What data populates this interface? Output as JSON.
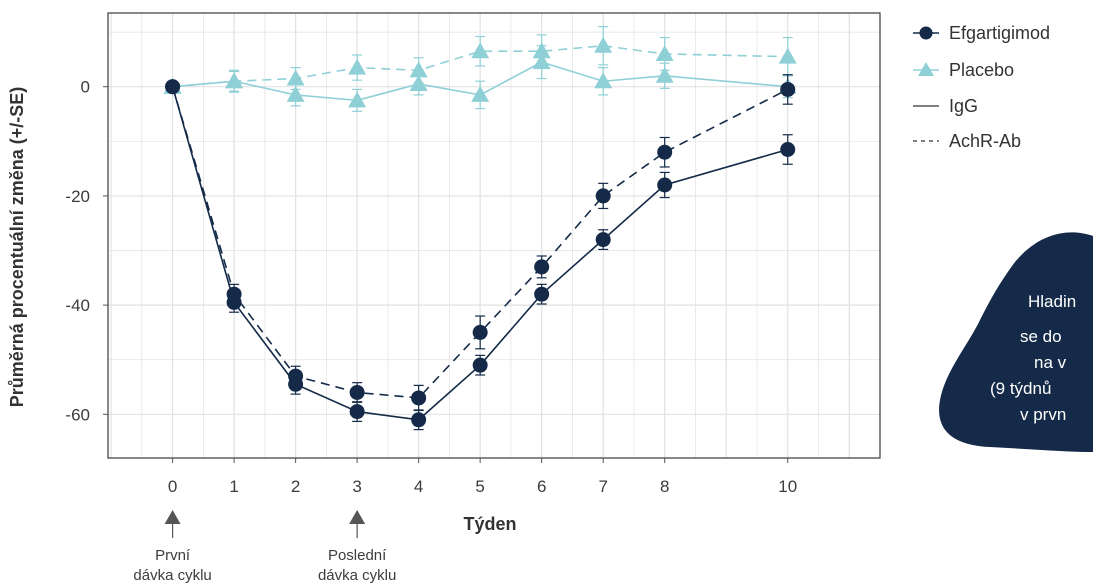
{
  "colors": {
    "efgartigimod": "#142a48",
    "placebo": "#8fd0d7",
    "grid": "#e2e2e2",
    "blob": "#142a48"
  },
  "chart_data": {
    "type": "line",
    "xlabel": "Týden",
    "ylabel": "Průměrná procentuální změna (+/-SE)",
    "xlim": [
      -1.05,
      11.5
    ],
    "ylim": [
      -68,
      13.5
    ],
    "x_ticks": [
      0,
      1,
      2,
      3,
      4,
      5,
      6,
      7,
      8,
      10
    ],
    "y_ticks": [
      0,
      -20,
      -40,
      -60
    ],
    "y_tick_labels": [
      "0",
      "-20",
      "-40",
      "-60"
    ],
    "legend": [
      {
        "label": "Efgartigimod",
        "marker": "circle"
      },
      {
        "label": "Placebo",
        "marker": "triangle"
      },
      {
        "label": "IgG",
        "line": "solid"
      },
      {
        "label": "AchR-Ab",
        "line": "dashed"
      }
    ],
    "series": [
      {
        "name": "Efgartigimod IgG",
        "group": "Efgartigimod",
        "marker": "circle",
        "dash": false,
        "x": [
          0,
          1,
          2,
          3,
          4,
          5,
          6,
          7,
          8,
          10
        ],
        "y": [
          0,
          -39.5,
          -54.5,
          -59.5,
          -61,
          -51,
          -38,
          -28,
          -18,
          -11.5
        ],
        "se": [
          0.5,
          1.8,
          1.8,
          1.8,
          1.8,
          1.8,
          1.8,
          1.8,
          2.3,
          2.7
        ]
      },
      {
        "name": "Efgartigimod AchR-Ab",
        "group": "Efgartigimod",
        "marker": "circle",
        "dash": true,
        "x": [
          0,
          1,
          2,
          3,
          4,
          5,
          6,
          7,
          8,
          10
        ],
        "y": [
          0,
          -38,
          -53,
          -56,
          -57,
          -45,
          -33,
          -20,
          -12,
          -0.5
        ],
        "se": [
          0.5,
          1.8,
          1.8,
          1.8,
          2.3,
          3.0,
          2.0,
          2.3,
          2.7,
          2.7
        ]
      },
      {
        "name": "Placebo IgG",
        "group": "Placebo",
        "marker": "triangle",
        "dash": false,
        "x": [
          0,
          1,
          2,
          3,
          4,
          5,
          6,
          7,
          8,
          10
        ],
        "y": [
          0,
          1,
          -1.5,
          -2.5,
          0.5,
          -1.5,
          4.5,
          1,
          2,
          0
        ],
        "se": [
          0.5,
          2,
          2,
          2,
          2,
          2.5,
          3,
          2.5,
          2.3,
          2
        ]
      },
      {
        "name": "Placebo AchR-Ab",
        "group": "Placebo",
        "marker": "triangle",
        "dash": true,
        "x": [
          0,
          1,
          2,
          3,
          4,
          5,
          6,
          7,
          8,
          10
        ],
        "y": [
          0,
          1,
          1.5,
          3.5,
          3,
          6.5,
          6.5,
          7.5,
          6,
          5.5
        ],
        "se": [
          0.5,
          1.8,
          2,
          2.3,
          2.3,
          2.7,
          3,
          3.5,
          3,
          3.5
        ]
      }
    ],
    "annotations": [
      {
        "x": 0,
        "text": [
          "První",
          "dávka cyklu"
        ]
      },
      {
        "x": 3,
        "text": [
          "Poslední",
          "dávka cyklu"
        ]
      }
    ],
    "callout": [
      "Hladin",
      "se do",
      "na v",
      "(9 týdnů",
      "v prvn"
    ]
  }
}
